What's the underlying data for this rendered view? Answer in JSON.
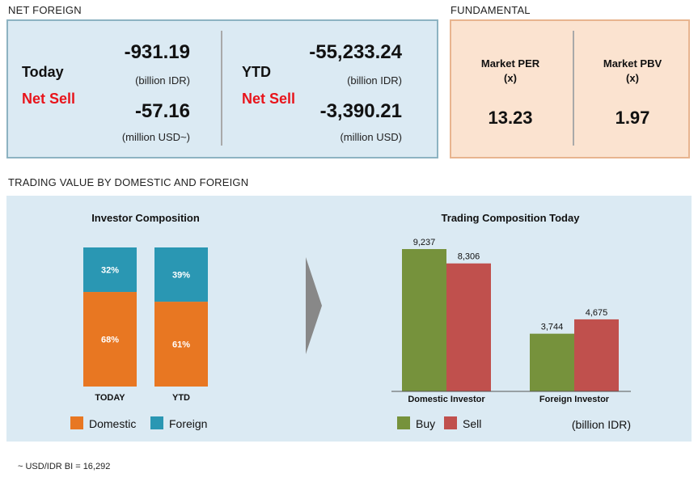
{
  "net_foreign": {
    "section_title": "NET FOREIGN",
    "today": {
      "label": "Today",
      "status": "Net Sell",
      "value_idr": "-931.19",
      "unit_idr": "(billion IDR)",
      "value_usd": "-57.16",
      "unit_usd": "(million USD~)"
    },
    "ytd": {
      "label": "YTD",
      "status": "Net Sell",
      "value_idr": "-55,233.24",
      "unit_idr": "(billion IDR)",
      "value_usd": "-3,390.21",
      "unit_usd": "(million USD)"
    }
  },
  "fundamental": {
    "section_title": "FUNDAMENTAL",
    "per": {
      "label": "Market PER",
      "unit": "(x)",
      "value": "13.23"
    },
    "pbv": {
      "label": "Market PBV",
      "unit": "(x)",
      "value": "1.97"
    }
  },
  "trading": {
    "section_title": "TRADING VALUE BY DOMESTIC AND FOREIGN"
  },
  "chart_data": [
    {
      "type": "bar",
      "stacked": true,
      "percent": true,
      "title": "Investor Composition",
      "categories": [
        "TODAY",
        "YTD"
      ],
      "series": [
        {
          "name": "Domestic",
          "values": [
            68,
            61
          ],
          "labels": [
            "68%",
            "61%"
          ],
          "color": "#e87722"
        },
        {
          "name": "Foreign",
          "values": [
            32,
            39
          ],
          "labels": [
            "32%",
            "39%"
          ],
          "color": "#2a97b3"
        }
      ],
      "ylim": [
        0,
        100
      ],
      "legend": "bottom",
      "grid": false
    },
    {
      "type": "bar",
      "title": "Trading Composition Today",
      "unit_note": "(billion IDR)",
      "categories": [
        "Domestic Investor",
        "Foreign Investor"
      ],
      "series": [
        {
          "name": "Buy",
          "values": [
            9237,
            3744
          ],
          "labels": [
            "9,237",
            "3,744"
          ],
          "color": "#76923c"
        },
        {
          "name": "Sell",
          "values": [
            8306,
            4675
          ],
          "labels": [
            "8,306",
            "4,675"
          ],
          "color": "#c0504d"
        }
      ],
      "ylim": [
        0,
        9237
      ],
      "legend": "bottom",
      "grid": false
    }
  ],
  "footnote": "~ USD/IDR BI = 16,292",
  "colors": {
    "net_sell": "#e8141b",
    "arrow": "#888888"
  }
}
